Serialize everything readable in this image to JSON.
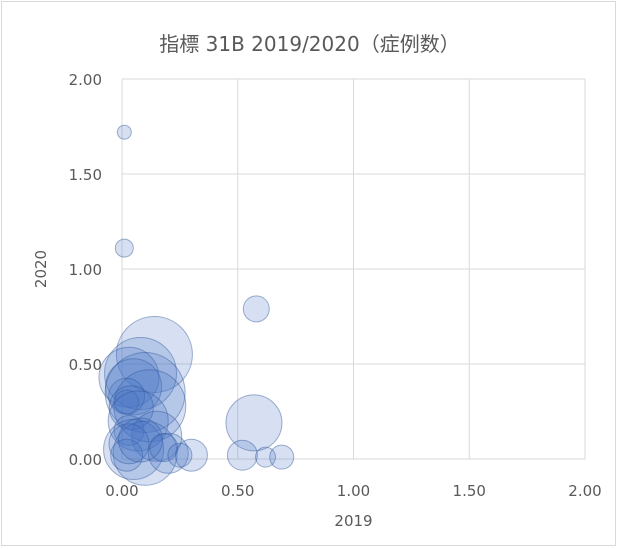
{
  "chart_data": {
    "type": "scatter",
    "title": "指標 31B  2019/2020（症例数）",
    "xlabel": "2019",
    "ylabel": "2020",
    "xlim": [
      0,
      2
    ],
    "ylim": [
      0,
      2
    ],
    "xticks": [
      "0.00",
      "0.50",
      "1.00",
      "1.50",
      "2.00"
    ],
    "yticks": [
      "0.00",
      "0.50",
      "1.00",
      "1.50",
      "2.00"
    ],
    "grid": true,
    "bubble": true,
    "colors": {
      "fill": "#4472c4",
      "stroke": "#2f5597",
      "grid": "#d9d9d9",
      "text": "#595959"
    },
    "points": [
      {
        "x": 0.01,
        "y": 1.72,
        "r": 7
      },
      {
        "x": 0.01,
        "y": 1.11,
        "r": 9
      },
      {
        "x": 0.58,
        "y": 0.79,
        "r": 13
      },
      {
        "x": 0.14,
        "y": 0.55,
        "r": 38
      },
      {
        "x": 0.08,
        "y": 0.45,
        "r": 36
      },
      {
        "x": 0.03,
        "y": 0.43,
        "r": 30
      },
      {
        "x": 0.05,
        "y": 0.38,
        "r": 28
      },
      {
        "x": 0.1,
        "y": 0.35,
        "r": 40
      },
      {
        "x": 0.12,
        "y": 0.28,
        "r": 36
      },
      {
        "x": 0.02,
        "y": 0.33,
        "r": 18
      },
      {
        "x": 0.02,
        "y": 0.3,
        "r": 12
      },
      {
        "x": 0.04,
        "y": 0.27,
        "r": 22
      },
      {
        "x": 0.07,
        "y": 0.2,
        "r": 30
      },
      {
        "x": 0.15,
        "y": 0.12,
        "r": 25
      },
      {
        "x": 0.03,
        "y": 0.15,
        "r": 15
      },
      {
        "x": 0.57,
        "y": 0.19,
        "r": 28
      },
      {
        "x": 0.05,
        "y": 0.05,
        "r": 30
      },
      {
        "x": 0.1,
        "y": 0.03,
        "r": 32
      },
      {
        "x": 0.2,
        "y": 0.03,
        "r": 20
      },
      {
        "x": 0.3,
        "y": 0.02,
        "r": 16
      },
      {
        "x": 0.52,
        "y": 0.02,
        "r": 15
      },
      {
        "x": 0.62,
        "y": 0.01,
        "r": 10
      },
      {
        "x": 0.69,
        "y": 0.01,
        "r": 12
      },
      {
        "x": 0.02,
        "y": 0.02,
        "r": 16
      },
      {
        "x": 0.03,
        "y": 0.08,
        "r": 20
      },
      {
        "x": 0.08,
        "y": 0.1,
        "r": 22
      },
      {
        "x": 0.18,
        "y": 0.06,
        "r": 14
      },
      {
        "x": 0.25,
        "y": 0.02,
        "r": 12
      }
    ]
  }
}
